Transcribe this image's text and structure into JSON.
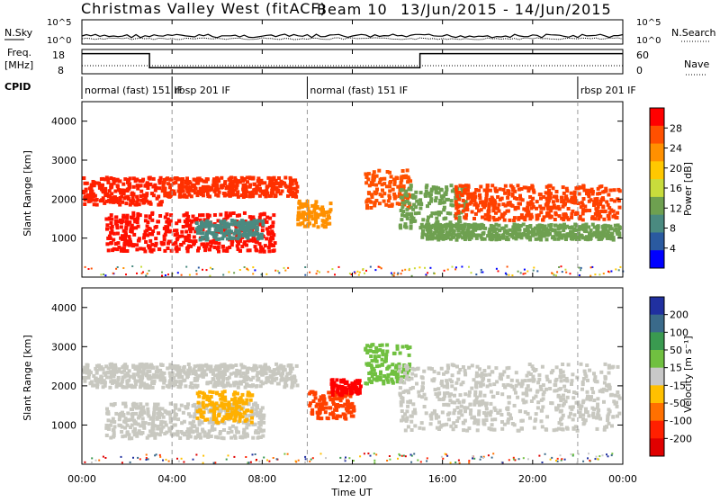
{
  "title": "Christmas Valley West (fitACF)",
  "beam_label": "Beam 10",
  "date_range": "13/Jun/2015 - 14/Jun/2015",
  "header": {
    "nsky_label": "N.Sky",
    "nsearch_label": "N.Search",
    "freq_label": "Freq.",
    "freq_unit": "[MHz]",
    "nave_label": "Nave",
    "cpid_label": "CPID",
    "left_ticks_top": [
      "10^5",
      "10^0"
    ],
    "right_ticks_top": [
      "10^5",
      "10^0"
    ],
    "left_ticks_freq": [
      "18",
      "8"
    ],
    "right_ticks_nave": [
      "60",
      "0"
    ],
    "cpid_segments": [
      {
        "label": "normal (fast) 151 IF",
        "start_h": 0
      },
      {
        "label": "rbsp 201 IF",
        "start_h": 4
      },
      {
        "label": "normal (fast) 151 IF",
        "start_h": 10
      },
      {
        "label": "rbsp 201 IF",
        "start_h": 22
      }
    ],
    "freq_steps": [
      {
        "start_h": 0,
        "end_h": 3,
        "level": 0.85
      },
      {
        "start_h": 3,
        "end_h": 15,
        "level": 0.2
      },
      {
        "start_h": 15,
        "end_h": 24,
        "level": 0.85
      }
    ]
  },
  "chart_data": [
    {
      "type": "heatmap",
      "panel": "power",
      "xlabel": "",
      "ylabel": "Slant Range [km]",
      "ylim": [
        0,
        4500
      ],
      "xlim_hours": [
        0,
        24
      ],
      "colorbar_label": "Power [dB]",
      "colorbar_ticks": [
        "28",
        "24",
        "20",
        "16",
        "12",
        "8",
        "4"
      ],
      "colorbar_colors": [
        "#ff0000",
        "#ff5000",
        "#ff9000",
        "#ffc800",
        "#c8dc3c",
        "#6ea050",
        "#4a8a80",
        "#2a5aa0",
        "#0000ff"
      ],
      "bands": [
        {
          "x0": 0.0,
          "x1": 3.5,
          "y0": 1900,
          "y1": 2600,
          "color": "#ff2000"
        },
        {
          "x0": 1.0,
          "x1": 8.5,
          "y0": 700,
          "y1": 1700,
          "color": "#ff1000"
        },
        {
          "x0": 3.5,
          "x1": 9.5,
          "y0": 2100,
          "y1": 2600,
          "color": "#ff3000"
        },
        {
          "x0": 5.0,
          "x1": 8.0,
          "y0": 1000,
          "y1": 1500,
          "color": "#4a8a80"
        },
        {
          "x0": 9.5,
          "x1": 11.0,
          "y0": 1300,
          "y1": 2000,
          "color": "#ff9000"
        },
        {
          "x0": 12.5,
          "x1": 14.5,
          "y0": 1800,
          "y1": 2800,
          "color": "#ff5000"
        },
        {
          "x0": 14.0,
          "x1": 17.0,
          "y0": 1300,
          "y1": 2400,
          "color": "#6ea050"
        },
        {
          "x0": 16.5,
          "x1": 23.8,
          "y0": 1500,
          "y1": 2400,
          "color": "#ff4000"
        },
        {
          "x0": 15.0,
          "x1": 23.8,
          "y0": 1000,
          "y1": 1400,
          "color": "#6ea050"
        }
      ]
    },
    {
      "type": "heatmap",
      "panel": "velocity",
      "xlabel": "Time UT",
      "ylabel": "Slant Range [km]",
      "ylim": [
        0,
        4500
      ],
      "xlim_hours": [
        0,
        24
      ],
      "colorbar_label": "Velocity [m s⁻¹]",
      "colorbar_ticks": [
        "200",
        "100",
        "50",
        "15",
        "-15",
        "-50",
        "-100",
        "-200"
      ],
      "colorbar_colors": [
        "#2030a0",
        "#3a6a8a",
        "#3a9a50",
        "#70c040",
        "#c8c8c8",
        "#ffc000",
        "#ff7000",
        "#ff2000",
        "#e00000"
      ],
      "bands": [
        {
          "x0": 0.0,
          "x1": 9.5,
          "y0": 2000,
          "y1": 2600,
          "color": "#c8c8c0"
        },
        {
          "x0": 1.0,
          "x1": 8.0,
          "y0": 700,
          "y1": 1600,
          "color": "#c8c8c0"
        },
        {
          "x0": 5.0,
          "x1": 7.5,
          "y0": 1100,
          "y1": 1900,
          "color": "#ffb000"
        },
        {
          "x0": 10.0,
          "x1": 12.0,
          "y0": 1200,
          "y1": 1900,
          "color": "#ff4000"
        },
        {
          "x0": 11.0,
          "x1": 12.3,
          "y0": 1800,
          "y1": 2200,
          "color": "#ff0000"
        },
        {
          "x0": 12.5,
          "x1": 14.5,
          "y0": 2100,
          "y1": 3100,
          "color": "#70c040"
        },
        {
          "x0": 14.0,
          "x1": 23.8,
          "y0": 900,
          "y1": 2600,
          "color": "#c8c8c0"
        }
      ]
    }
  ],
  "yticks": [
    "4000",
    "3000",
    "2000",
    "1000"
  ],
  "xticks": [
    "00:00",
    "04:00",
    "08:00",
    "12:00",
    "16:00",
    "20:00",
    "00:00"
  ]
}
